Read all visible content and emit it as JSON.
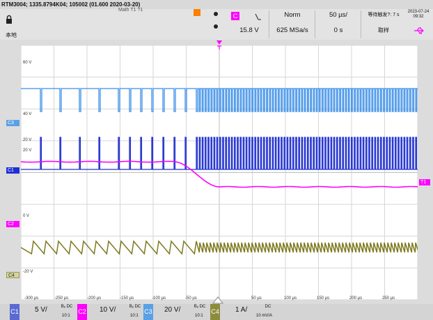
{
  "title": "RTM3004; 1335.8794K04; 105002 (01.600 2020-03-20)",
  "top_left": {
    "local_label": "本地",
    "menu_fragment": "Math T1 ?1"
  },
  "trigger": {
    "source_label": "C",
    "slope_icon": "rising-edge-icon",
    "mode": "Norm",
    "level": "15.8 V",
    "timebase": "50 µs/",
    "sample_rate": "625 MSa/s",
    "horizontal_position": "0 s",
    "status_text": "等待触发?: 7 s",
    "acquisition_label": "取样",
    "date": "2023-07-24",
    "time": "09:32",
    "usb_icon": "usb-icon"
  },
  "channel_labels": {
    "c3": "C3",
    "c1": "C1",
    "c2": "C2",
    "c4": "C4",
    "t1": "T1"
  },
  "y_labels": [
    "60 V",
    "40 V",
    "20 V",
    "20 V",
    "0 V",
    "-20 V"
  ],
  "x_ticks": [
    "-300 µs",
    "-250 µs",
    "-200 µs",
    "-150 µs",
    "-100 µs",
    "-50 µs",
    "50 µs",
    "100 µs",
    "150 µs",
    "200 µs",
    "250 µs"
  ],
  "bottom": {
    "channels": [
      {
        "name": "C1",
        "scale": "5 V/",
        "coupling": "Bₑ DC",
        "ratio": "10:1",
        "color": "#5b6ad2"
      },
      {
        "name": "C2",
        "scale": "10 V/",
        "coupling": "Bₑ DC",
        "ratio": "10:1",
        "color": "#ff00ff"
      },
      {
        "name": "C3",
        "scale": "20 V/",
        "coupling": "Bₑ DC",
        "ratio": "10:1",
        "color": "#5aa0e6"
      },
      {
        "name": "C4",
        "scale": "1 A/",
        "coupling": "DC",
        "ratio": "10 mV/A",
        "color": "#8c8c3c"
      }
    ]
  },
  "colors": {
    "c1": "#2030d0",
    "c2": "#ff00ff",
    "c3": "#3a8ee8",
    "c4": "#7d7a1f",
    "trigger_marker": "#ff00ff",
    "grid": "#d6d6d6"
  }
}
